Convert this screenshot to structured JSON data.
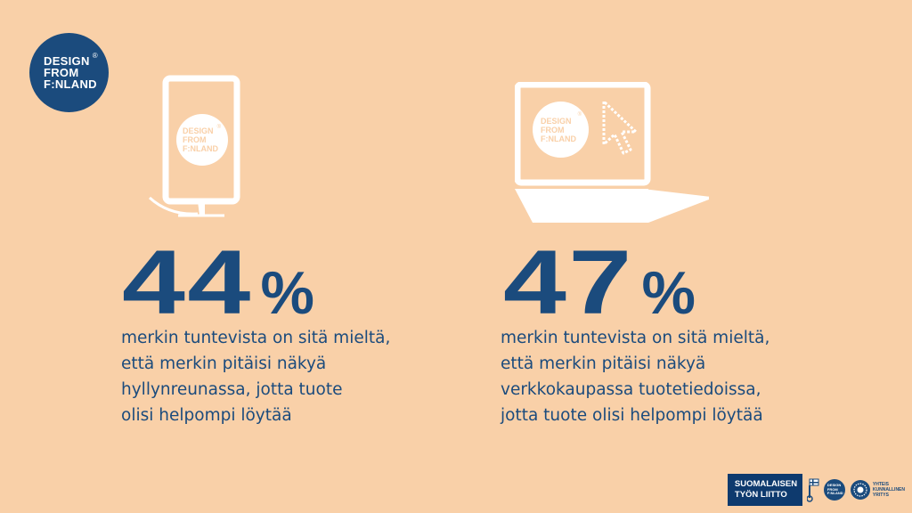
{
  "logo": {
    "line1": "DESIGN",
    "line2": "FROM",
    "line3": "F:NLAND",
    "reg": "®"
  },
  "stand_logo": {
    "line1": "DESIGN",
    "line2": "FROM",
    "line3": "F:NLAND",
    "reg": "®"
  },
  "laptop_logo": {
    "line1": "DESIGN",
    "line2": "FROM",
    "line3": "F:NLAND",
    "reg": "®"
  },
  "left": {
    "number": "44",
    "percent": "%",
    "lines": [
      "merkin tuntevista on sitä mieltä,",
      "että merkin pitäisi näkyä",
      "hyllynreunassa, jotta tuote",
      "olisi helpompi löytää"
    ]
  },
  "right": {
    "number": "47",
    "percent": "%",
    "lines": [
      "merkin tuntevista on sitä mieltä,",
      "että merkin pitäisi näkyä",
      "verkkokaupassa tuotetiedoissa,",
      "jotta tuote olisi helpompi löytää"
    ]
  },
  "footer": {
    "stl_line1": "SUOMALAISEN",
    "stl_line2": "TYÖN LIITTO",
    "mini_logo": {
      "line1": "DESIGN",
      "line2": "FROM",
      "line3": "F:NLAND"
    },
    "yv_line1": "YHTEIS",
    "yv_line2": "KUNNALLINEN",
    "yv_line3": "YRITYS",
    "icons": [
      "key-flag-icon",
      "sun-circle-icon"
    ]
  },
  "colors": {
    "background": "#f9d0a8",
    "navy": "#1b4b7d",
    "white": "#ffffff"
  }
}
